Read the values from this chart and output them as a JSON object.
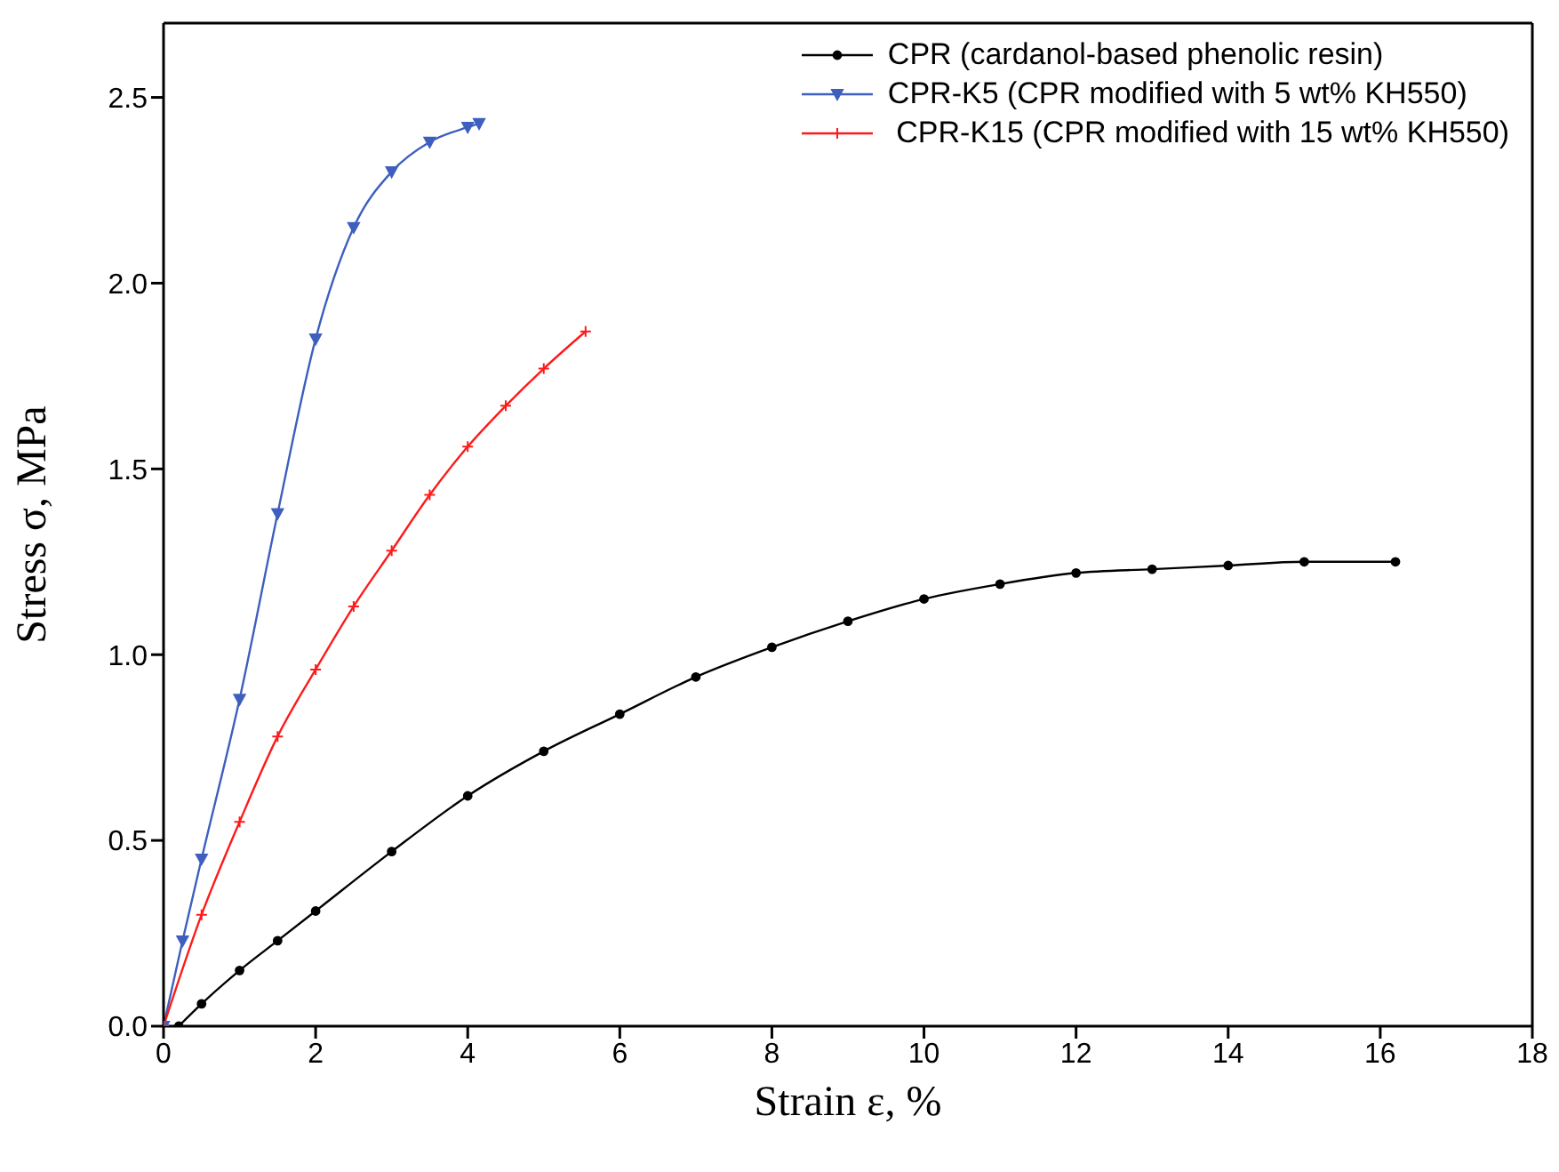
{
  "chart_data": {
    "type": "line",
    "xlabel": "Strain ε, %",
    "ylabel": "Stress σ, MPa",
    "xlim": [
      0,
      18
    ],
    "xticks": [
      0,
      2,
      4,
      6,
      8,
      10,
      12,
      14,
      16,
      18
    ],
    "ylim": [
      0,
      2.7
    ],
    "yticks": [
      {
        "value": 0,
        "label": "0.0"
      },
      0.5,
      {
        "value": 1,
        "label": "1.0"
      },
      1.5,
      {
        "value": 2,
        "label": "2.0"
      },
      2.5
    ],
    "legend": "top right",
    "line_style": "solid",
    "series": [
      {
        "name": "CPR (cardanol-based phenolic resin)",
        "color": "#000000",
        "marker": "circle",
        "x": [
          0.2,
          0.5,
          1,
          1.5,
          2,
          3,
          4,
          5,
          6,
          7,
          8,
          9,
          10,
          11,
          12,
          13,
          14,
          15,
          16.2
        ],
        "values": [
          0,
          0.06,
          0.15,
          0.23,
          0.31,
          0.47,
          0.62,
          0.74,
          0.84,
          0.94,
          1.02,
          1.09,
          1.15,
          1.19,
          1.22,
          1.23,
          1.24,
          1.25,
          1.25
        ]
      },
      {
        "name": "CPR-K5 (CPR modified with 5 wt% KH550)",
        "color": "#3f5fbf",
        "marker": "triangle",
        "x": [
          0,
          0.25,
          0.5,
          1,
          1.5,
          2,
          2.5,
          3,
          3.5,
          4,
          4.15
        ],
        "values": [
          0,
          0.23,
          0.45,
          0.88,
          1.38,
          1.85,
          2.15,
          2.3,
          2.38,
          2.42,
          2.43
        ]
      },
      {
        "name": " CPR-K15 (CPR modified with 15 wt% KH550)",
        "color": "#ff1a1a",
        "marker": "cross",
        "x": [
          0,
          0.5,
          1,
          1.5,
          2,
          2.5,
          3,
          3.5,
          4,
          4.5,
          5,
          5.55
        ],
        "values": [
          0,
          0.3,
          0.55,
          0.78,
          0.96,
          1.13,
          1.28,
          1.43,
          1.56,
          1.67,
          1.77,
          1.87
        ]
      }
    ]
  }
}
